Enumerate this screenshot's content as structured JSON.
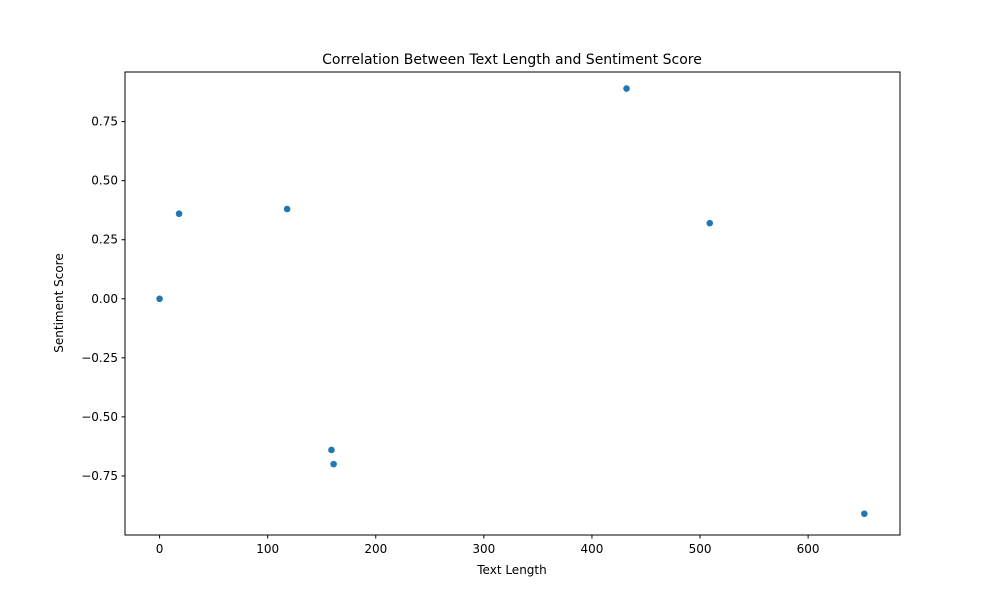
{
  "chart_data": {
    "type": "scatter",
    "title": "Correlation Between Text Length and Sentiment Score",
    "xlabel": "Text Length",
    "ylabel": "Sentiment Score",
    "xlim": [
      -32,
      685
    ],
    "ylim": [
      -1.0,
      0.96
    ],
    "x_ticks": [
      0,
      100,
      200,
      300,
      400,
      500,
      600
    ],
    "y_ticks": [
      -0.75,
      -0.5,
      -0.25,
      0.0,
      0.25,
      0.5,
      0.75
    ],
    "x_tick_labels": [
      "0",
      "100",
      "200",
      "300",
      "400",
      "500",
      "600"
    ],
    "y_tick_labels": [
      "−0.75",
      "−0.50",
      "−0.25",
      "0.00",
      "0.25",
      "0.50",
      "0.75"
    ],
    "grid": false,
    "marker_color": "#1f77b4",
    "points": [
      {
        "x": 0,
        "y": 0.0
      },
      {
        "x": 18,
        "y": 0.36
      },
      {
        "x": 118,
        "y": 0.38
      },
      {
        "x": 159,
        "y": -0.64
      },
      {
        "x": 161,
        "y": -0.7
      },
      {
        "x": 432,
        "y": 0.89
      },
      {
        "x": 509,
        "y": 0.32
      },
      {
        "x": 652,
        "y": -0.91
      }
    ]
  }
}
